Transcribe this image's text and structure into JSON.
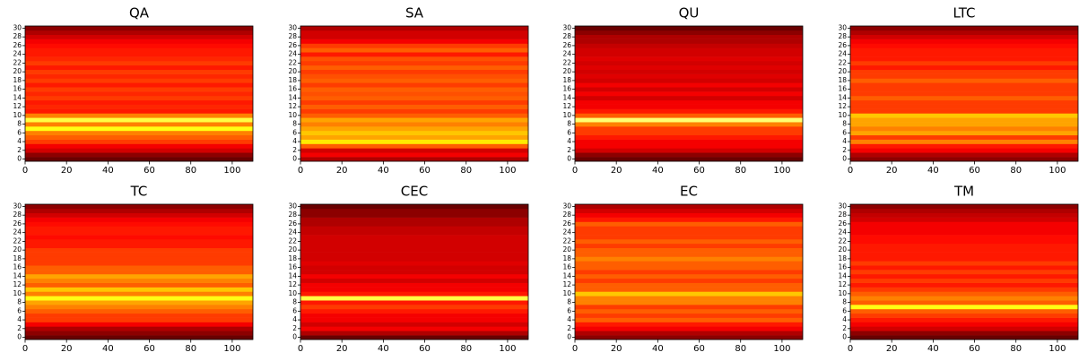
{
  "chart_data": [
    {
      "type": "heatmap",
      "title": "QA",
      "colormap": "hot",
      "vlim": [
        0,
        1
      ],
      "xlim": [
        0,
        110
      ],
      "ylim": [
        -0.5,
        30.5
      ],
      "xticks": [
        0,
        20,
        40,
        60,
        80,
        100
      ],
      "yticks": [
        0,
        2,
        4,
        6,
        8,
        10,
        12,
        14,
        16,
        18,
        20,
        22,
        24,
        26,
        28,
        30
      ],
      "values": [
        0.15,
        0.2,
        0.3,
        0.35,
        0.45,
        0.5,
        0.55,
        0.75,
        0.55,
        0.8,
        0.55,
        0.4,
        0.42,
        0.4,
        0.45,
        0.42,
        0.45,
        0.4,
        0.45,
        0.42,
        0.45,
        0.4,
        0.45,
        0.42,
        0.4,
        0.4,
        0.38,
        0.35,
        0.3,
        0.25,
        0.2
      ]
    },
    {
      "type": "heatmap",
      "title": "SA",
      "colormap": "hot",
      "vlim": [
        0,
        1
      ],
      "xlim": [
        0,
        110
      ],
      "ylim": [
        -0.5,
        30.5
      ],
      "xticks": [
        0,
        20,
        40,
        60,
        80,
        100
      ],
      "yticks": [
        0,
        2,
        4,
        6,
        8,
        10,
        12,
        14,
        16,
        18,
        20,
        22,
        24,
        26,
        28,
        30
      ],
      "values": [
        0.25,
        0.35,
        0.3,
        0.5,
        0.7,
        0.6,
        0.65,
        0.6,
        0.55,
        0.6,
        0.5,
        0.45,
        0.5,
        0.45,
        0.5,
        0.48,
        0.5,
        0.45,
        0.5,
        0.48,
        0.45,
        0.5,
        0.45,
        0.48,
        0.4,
        0.5,
        0.45,
        0.35,
        0.3,
        0.3,
        0.25
      ]
    },
    {
      "type": "heatmap",
      "title": "QU",
      "colormap": "hot",
      "vlim": [
        0,
        1
      ],
      "xlim": [
        0,
        110
      ],
      "ylim": [
        -0.5,
        30.5
      ],
      "xticks": [
        0,
        20,
        40,
        60,
        80,
        100
      ],
      "yticks": [
        0,
        2,
        4,
        6,
        8,
        10,
        12,
        14,
        16,
        18,
        20,
        22,
        24,
        26,
        28,
        30
      ],
      "values": [
        0.15,
        0.2,
        0.3,
        0.35,
        0.35,
        0.4,
        0.45,
        0.45,
        0.55,
        0.85,
        0.5,
        0.4,
        0.35,
        0.35,
        0.3,
        0.35,
        0.3,
        0.35,
        0.3,
        0.32,
        0.3,
        0.32,
        0.3,
        0.32,
        0.3,
        0.3,
        0.28,
        0.25,
        0.25,
        0.2,
        0.15
      ]
    },
    {
      "type": "heatmap",
      "title": "LTC",
      "colormap": "hot",
      "vlim": [
        0,
        1
      ],
      "xlim": [
        0,
        110
      ],
      "ylim": [
        -0.5,
        30.5
      ],
      "xticks": [
        0,
        20,
        40,
        60,
        80,
        100
      ],
      "yticks": [
        0,
        2,
        4,
        6,
        8,
        10,
        12,
        14,
        16,
        18,
        20,
        22,
        24,
        26,
        28,
        30
      ],
      "values": [
        0.2,
        0.25,
        0.35,
        0.4,
        0.55,
        0.45,
        0.6,
        0.55,
        0.6,
        0.6,
        0.65,
        0.45,
        0.45,
        0.45,
        0.5,
        0.45,
        0.45,
        0.45,
        0.5,
        0.45,
        0.45,
        0.4,
        0.45,
        0.4,
        0.4,
        0.4,
        0.38,
        0.35,
        0.3,
        0.25,
        0.2
      ]
    },
    {
      "type": "heatmap",
      "title": "TC",
      "colormap": "hot",
      "vlim": [
        0,
        1
      ],
      "xlim": [
        0,
        110
      ],
      "ylim": [
        -0.5,
        30.5
      ],
      "xticks": [
        0,
        20,
        40,
        60,
        80,
        100
      ],
      "yticks": [
        0,
        2,
        4,
        6,
        8,
        10,
        12,
        14,
        16,
        18,
        20,
        22,
        24,
        26,
        28,
        30
      ],
      "values": [
        0.15,
        0.2,
        0.25,
        0.35,
        0.45,
        0.45,
        0.5,
        0.55,
        0.6,
        0.75,
        0.55,
        0.65,
        0.5,
        0.55,
        0.6,
        0.5,
        0.5,
        0.45,
        0.45,
        0.45,
        0.45,
        0.4,
        0.4,
        0.38,
        0.4,
        0.4,
        0.38,
        0.35,
        0.3,
        0.25,
        0.2
      ]
    },
    {
      "type": "heatmap",
      "title": "CEC",
      "colormap": "hot",
      "vlim": [
        0,
        1
      ],
      "xlim": [
        0,
        110
      ],
      "ylim": [
        -0.5,
        30.5
      ],
      "xticks": [
        0,
        20,
        40,
        60,
        80,
        100
      ],
      "yticks": [
        0,
        2,
        4,
        6,
        8,
        10,
        12,
        14,
        16,
        18,
        20,
        22,
        24,
        26,
        28,
        30
      ],
      "values": [
        0.15,
        0.25,
        0.35,
        0.3,
        0.35,
        0.35,
        0.4,
        0.45,
        0.4,
        0.8,
        0.4,
        0.35,
        0.35,
        0.3,
        0.35,
        0.3,
        0.3,
        0.32,
        0.3,
        0.3,
        0.3,
        0.3,
        0.3,
        0.3,
        0.28,
        0.28,
        0.25,
        0.25,
        0.2,
        0.2,
        0.15
      ]
    },
    {
      "type": "heatmap",
      "title": "EC",
      "colormap": "hot",
      "vlim": [
        0,
        1
      ],
      "xlim": [
        0,
        110
      ],
      "ylim": [
        -0.5,
        30.5
      ],
      "xticks": [
        0,
        20,
        40,
        60,
        80,
        100
      ],
      "yticks": [
        0,
        2,
        4,
        6,
        8,
        10,
        12,
        14,
        16,
        18,
        20,
        22,
        24,
        26,
        28,
        30
      ],
      "values": [
        0.2,
        0.25,
        0.35,
        0.4,
        0.5,
        0.45,
        0.5,
        0.45,
        0.55,
        0.55,
        0.65,
        0.5,
        0.5,
        0.45,
        0.5,
        0.45,
        0.5,
        0.5,
        0.55,
        0.5,
        0.5,
        0.45,
        0.5,
        0.45,
        0.45,
        0.45,
        0.5,
        0.4,
        0.35,
        0.3,
        0.25
      ]
    },
    {
      "type": "heatmap",
      "title": "TM",
      "colormap": "hot",
      "vlim": [
        0,
        1
      ],
      "xlim": [
        0,
        110
      ],
      "ylim": [
        -0.5,
        30.5
      ],
      "xticks": [
        0,
        20,
        40,
        60,
        80,
        100
      ],
      "yticks": [
        0,
        2,
        4,
        6,
        8,
        10,
        12,
        14,
        16,
        18,
        20,
        22,
        24,
        26,
        28,
        30
      ],
      "values": [
        0.15,
        0.2,
        0.3,
        0.35,
        0.4,
        0.45,
        0.5,
        0.75,
        0.5,
        0.55,
        0.5,
        0.45,
        0.4,
        0.45,
        0.4,
        0.45,
        0.4,
        0.45,
        0.4,
        0.4,
        0.4,
        0.4,
        0.38,
        0.38,
        0.35,
        0.35,
        0.35,
        0.3,
        0.28,
        0.25,
        0.2
      ]
    }
  ]
}
